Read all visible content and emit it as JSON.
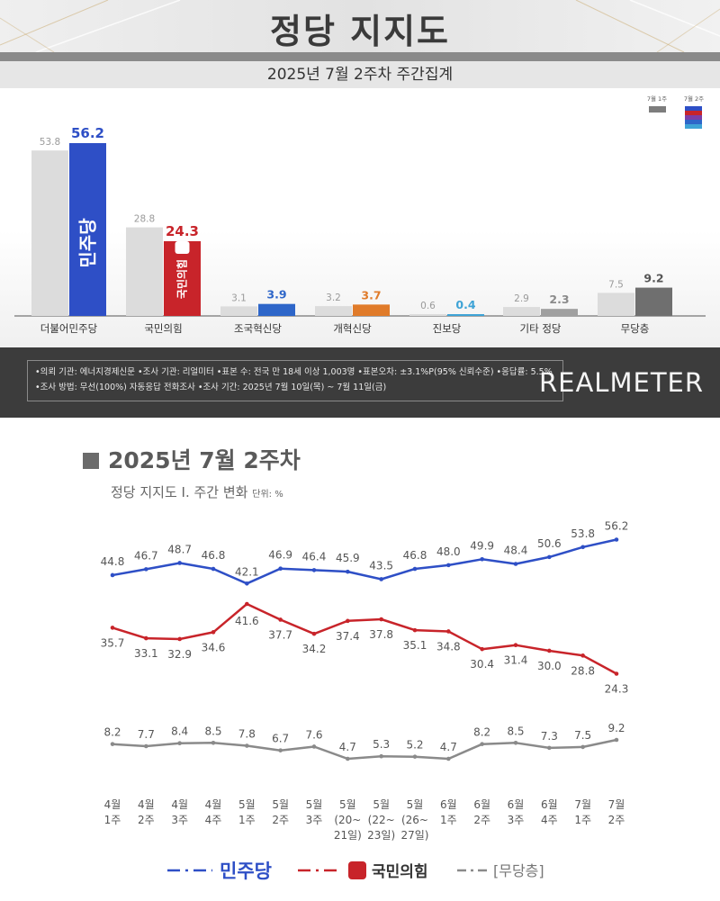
{
  "header": {
    "title": "정당 지지도",
    "subtitle": "2025년 7월 2주차 주간집계"
  },
  "bar_legend": {
    "prev_label": "7월 1주",
    "curr_label": "7월 2주"
  },
  "colors": {
    "democratic": "#2e4fc6",
    "ppp": "#c8242a",
    "rebuilding": "#2e66c9",
    "reform": "#e07b2a",
    "progressive": "#3ea3d6",
    "other": "#a0a0a0",
    "independent": "#6f6f6f",
    "prev": "#dcdcdc"
  },
  "chart_data": [
    {
      "type": "bar",
      "title": "2025년 7월 2주차 주간집계",
      "categories": [
        "더불어민주당",
        "국민의힘",
        "조국혁신당",
        "개혁신당",
        "진보당",
        "기타 정당",
        "무당층"
      ],
      "series": [
        {
          "name": "7월 1주",
          "values": [
            53.8,
            28.8,
            3.1,
            3.2,
            0.6,
            2.9,
            7.5
          ]
        },
        {
          "name": "7월 2주",
          "values": [
            56.2,
            24.3,
            3.9,
            3.7,
            0.4,
            2.3,
            9.2
          ]
        }
      ],
      "value_labels": {
        "prev": [
          "53.8",
          "28.8",
          "3.1",
          "3.2",
          "0.6",
          "2.9",
          "7.5"
        ],
        "curr": [
          "56.2",
          "24.3",
          "3.9",
          "3.7",
          "0.4",
          "2.3",
          "9.2"
        ]
      },
      "ylim": [
        0,
        60
      ],
      "bar_text": [
        "민주당",
        "국민의힘"
      ]
    },
    {
      "type": "line",
      "title": "2025년 7월 2주차",
      "subtitle": "정당 지지도 Ⅰ. 주간 변화",
      "unit": "단위: %",
      "x": [
        [
          "4월",
          "1주"
        ],
        [
          "4월",
          "2주"
        ],
        [
          "4월",
          "3주"
        ],
        [
          "4월",
          "4주"
        ],
        [
          "5월",
          "1주"
        ],
        [
          "5월",
          "2주"
        ],
        [
          "5월",
          "3주"
        ],
        [
          "5월",
          "(20~",
          "21일)"
        ],
        [
          "5월",
          "(22~",
          "23일)"
        ],
        [
          "5월",
          "(26~",
          "27일)"
        ],
        [
          "6월",
          "1주"
        ],
        [
          "6월",
          "2주"
        ],
        [
          "6월",
          "3주"
        ],
        [
          "6월",
          "4주"
        ],
        [
          "7월",
          "1주"
        ],
        [
          "7월",
          "2주"
        ]
      ],
      "series": [
        {
          "name": "민주당",
          "values": [
            44.8,
            46.7,
            48.7,
            46.8,
            42.1,
            46.9,
            46.4,
            45.9,
            43.5,
            46.8,
            48.0,
            49.9,
            48.4,
            50.6,
            53.8,
            56.2
          ],
          "labels": [
            "44.8",
            "46.7",
            "48.7",
            "46.8",
            "42.1",
            "46.9",
            "46.4",
            "45.9",
            "43.5",
            "46.8",
            "48.0",
            "49.9",
            "48.4",
            "50.6",
            "53.8",
            "56.2"
          ]
        },
        {
          "name": "국민의힘",
          "values": [
            35.7,
            33.1,
            32.9,
            34.6,
            41.6,
            37.7,
            34.2,
            37.4,
            37.8,
            35.1,
            34.8,
            30.4,
            31.4,
            30.0,
            28.8,
            24.3
          ],
          "labels": [
            "35.7",
            "33.1",
            "32.9",
            "34.6",
            "41.6",
            "37.7",
            "34.2",
            "37.4",
            "37.8",
            "35.1",
            "34.8",
            "30.4",
            "31.4",
            "30.0",
            "28.8",
            "24.3"
          ]
        },
        {
          "name": "[무당층]",
          "values": [
            8.2,
            7.7,
            8.4,
            8.5,
            7.8,
            6.7,
            7.6,
            4.7,
            5.3,
            5.2,
            4.7,
            8.2,
            8.5,
            7.3,
            7.5,
            9.2
          ],
          "labels": [
            "8.2",
            "7.7",
            "8.4",
            "8.5",
            "7.8",
            "6.7",
            "7.6",
            "4.7",
            "5.3",
            "5.2",
            "4.7",
            "8.2",
            "8.5",
            "7.3",
            "7.5",
            "9.2"
          ]
        }
      ]
    }
  ],
  "footer": {
    "line1": "•의뢰 기관: 에너지경제신문  •조사 기관: 리얼미터  •표본 수: 전국 만 18세 이상 1,003명  •표본오차: ±3.1%P(95% 신뢰수준)  •응답률: 5.5%",
    "line2": "•조사 방법: 무선(100%) 자동응답 전화조사  •조사 기간: 2025년 7월 10일(목) ~ 7월 11일(금)",
    "logo": "REALMETER"
  }
}
